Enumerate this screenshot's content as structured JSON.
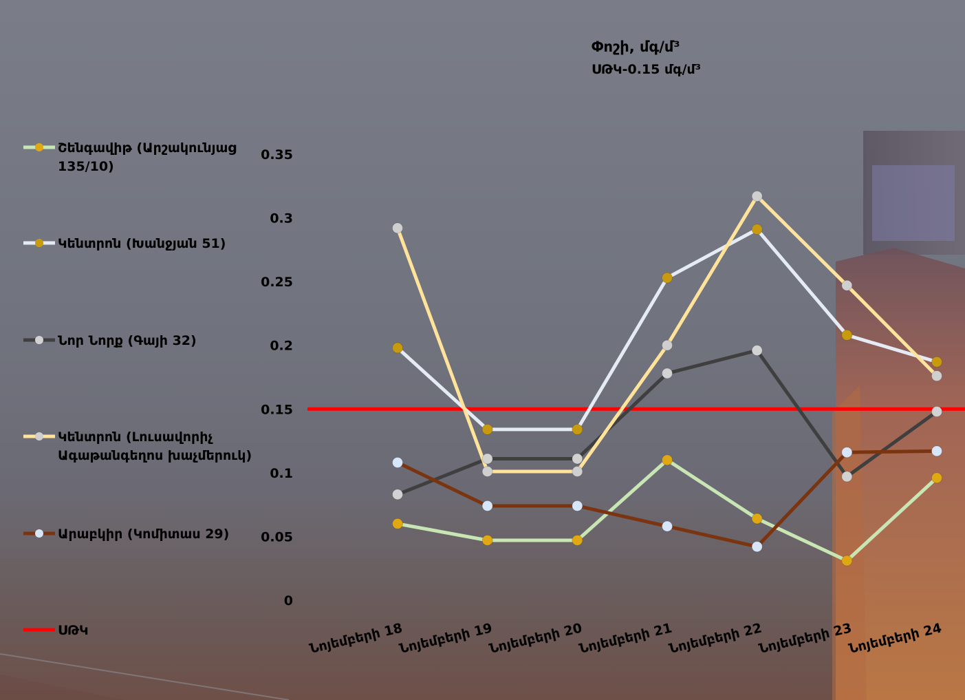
{
  "title": "Փոշի, մգ/մ³",
  "subtitle": "ՍԹԿ-0.15 մգ/մ³",
  "chart_data": {
    "type": "line",
    "categories": [
      "Նոյեմբերի 18",
      "Նոյեմբերի 19",
      "Նոյեմբերի 20",
      "Նոյեմբերի 21",
      "Նոյեմբերի 22",
      "Նոյեմբերի 23",
      "Նոյեմբերի 24"
    ],
    "ylim": [
      0,
      0.35
    ],
    "yticks": [
      "0",
      "0.05",
      "0.1",
      "0.15",
      "0.2",
      "0.25",
      "0.3",
      "0.35"
    ],
    "grid": false,
    "legend_position": "left",
    "threshold": {
      "name": "ՍԹԿ",
      "value": 0.15,
      "color": "#ff0000"
    },
    "series": [
      {
        "name": "Շենգավիթ (Արշակունյաց 135/10)",
        "line_color": "#c8e6b4",
        "marker_color": "#e0a812",
        "values": [
          0.06,
          0.047,
          0.047,
          0.11,
          0.064,
          0.031,
          0.096
        ]
      },
      {
        "name": "Կենտրոն (Խանջյան 51)",
        "line_color": "#e4ebf5",
        "marker_color": "#c89a10",
        "values": [
          0.198,
          0.134,
          0.134,
          0.253,
          0.291,
          0.208,
          0.187
        ]
      },
      {
        "name": "Նոր Նորք (Գայի 32)",
        "line_color": "#3f3f3f",
        "marker_color": "#d2d2d2",
        "values": [
          0.083,
          0.111,
          0.111,
          0.178,
          0.196,
          0.097,
          0.148
        ]
      },
      {
        "name": "Կենտրոն (Լուսավորիչ Ագաթանգեղոս խաչմերուկ)",
        "line_color": "#ffe39a",
        "marker_color": "#cfcfcf",
        "values": [
          0.292,
          0.101,
          0.101,
          0.2,
          0.317,
          0.247,
          0.176
        ]
      },
      {
        "name": "Արաբկիր (Կոմիտաս 29)",
        "line_color": "#7a3510",
        "marker_color": "#d8e6fa",
        "values": [
          0.108,
          0.074,
          0.074,
          0.058,
          0.042,
          0.116,
          0.117
        ]
      }
    ]
  }
}
